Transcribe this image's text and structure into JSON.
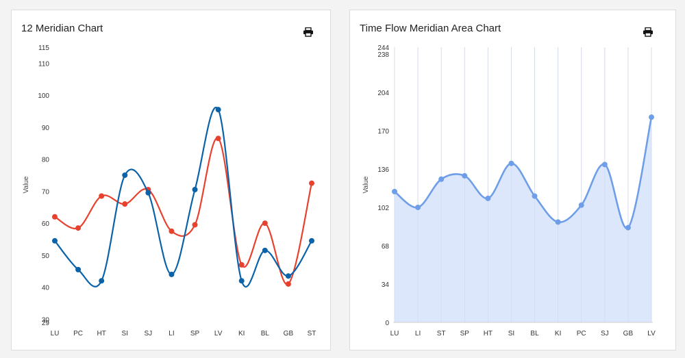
{
  "chart_data": [
    {
      "type": "line",
      "title": "12 Meridian Chart",
      "ylabel": "Value",
      "xlabel": "",
      "categories": [
        "LU",
        "PC",
        "HT",
        "SI",
        "SJ",
        "LI",
        "SP",
        "LV",
        "KI",
        "BL",
        "GB",
        "ST"
      ],
      "y_ticks": [
        29,
        30,
        40,
        50,
        60,
        70,
        80,
        90,
        100,
        110,
        115
      ],
      "ylim": [
        29,
        115
      ],
      "grid": false,
      "series": [
        {
          "color": "#e8412e",
          "values": [
            62,
            58.5,
            68.5,
            66,
            70.5,
            57.5,
            59.5,
            86.5,
            47,
            60,
            41,
            72.5
          ]
        },
        {
          "color": "#0a62a8",
          "values": [
            54.5,
            45.5,
            42,
            75,
            69.5,
            44,
            70.5,
            95.5,
            42,
            51.5,
            43.5,
            54.5
          ]
        }
      ]
    },
    {
      "type": "area",
      "title": "Time Flow Meridian Area Chart",
      "ylabel": "Value",
      "xlabel": "",
      "categories": [
        "LU",
        "LI",
        "ST",
        "SP",
        "HT",
        "SI",
        "BL",
        "KI",
        "PC",
        "SJ",
        "GB",
        "LV"
      ],
      "y_ticks": [
        0,
        34,
        68,
        102,
        136,
        170,
        204,
        238,
        244
      ],
      "ylim": [
        0,
        244
      ],
      "grid": true,
      "series": [
        {
          "color": "#6e9ee8",
          "fill": "#dce7fb",
          "values": [
            116,
            102,
            127,
            130,
            110,
            141,
            112,
            89,
            104,
            140,
            84,
            182
          ]
        }
      ]
    }
  ]
}
